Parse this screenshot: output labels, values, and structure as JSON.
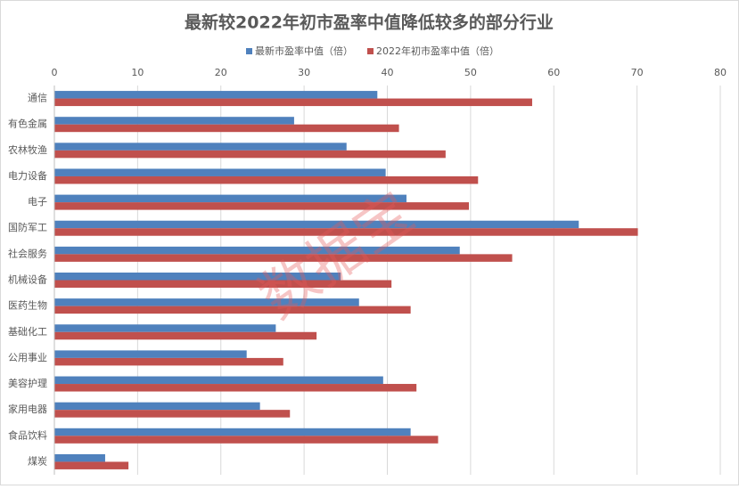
{
  "chart_data": {
    "type": "hbar",
    "title": "最新较2022年初市盈率中值降低较多的部分行业",
    "watermark": "数据宝",
    "categories": [
      "通信",
      "有色金属",
      "农林牧渔",
      "电力设备",
      "电子",
      "国防军工",
      "社会服务",
      "机械设备",
      "医药生物",
      "基础化工",
      "公用事业",
      "美容护理",
      "家用电器",
      "食品饮料",
      "煤炭"
    ],
    "series": [
      {
        "name": "最新市盈率中值（倍）",
        "color": "#4f81bd",
        "values": [
          38.8,
          28.8,
          35.1,
          39.8,
          42.3,
          63.0,
          48.7,
          34.4,
          36.6,
          26.6,
          23.1,
          39.5,
          24.7,
          42.8,
          6.1
        ]
      },
      {
        "name": "2022年初市盈率中值（倍）",
        "color": "#c0504d",
        "values": [
          57.4,
          41.4,
          47.0,
          50.9,
          49.8,
          70.1,
          55.0,
          40.5,
          42.8,
          31.5,
          27.5,
          43.5,
          28.3,
          46.1,
          8.9
        ]
      }
    ],
    "xlim": [
      0,
      80
    ],
    "xticks": [
      0,
      10,
      20,
      30,
      40,
      50,
      60,
      70,
      80
    ],
    "grid": true
  }
}
